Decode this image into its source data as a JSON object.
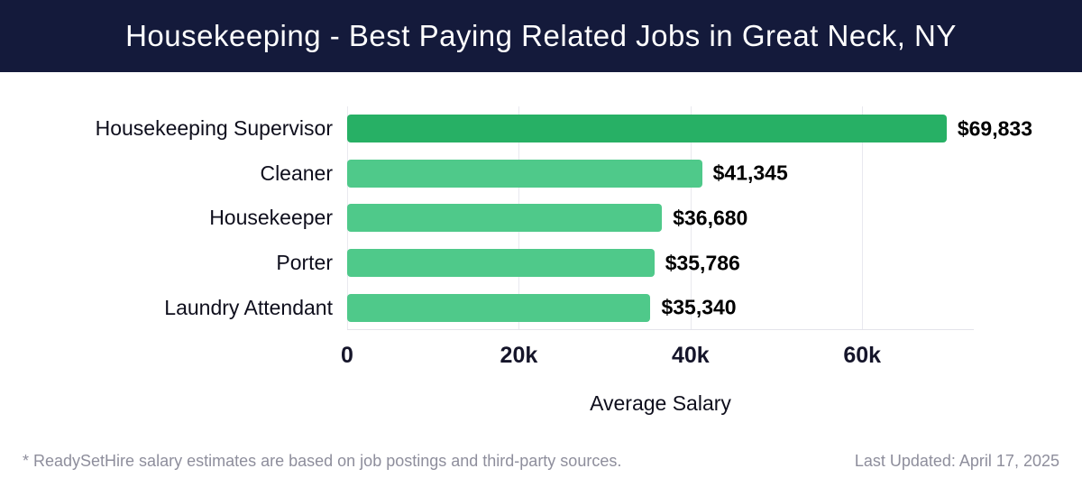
{
  "header": {
    "title": "Housekeeping - Best Paying Related Jobs in Great Neck, NY",
    "background_color": "#141a3b",
    "text_color": "#ffffff"
  },
  "chart_data": {
    "type": "bar",
    "orientation": "horizontal",
    "title": "Housekeeping - Best Paying Related Jobs in Great Neck, NY",
    "categories": [
      "Housekeeping Supervisor",
      "Cleaner",
      "Housekeeper",
      "Porter",
      "Laundry Attendant"
    ],
    "values": [
      69833,
      41345,
      36680,
      35786,
      35340
    ],
    "value_labels": [
      "$69,833",
      "$41,345",
      "$36,680",
      "$35,786",
      "$35,340"
    ],
    "xlabel": "Average Salary",
    "ylabel": "",
    "xlim": [
      0,
      73000
    ],
    "ticks": [
      {
        "value": 0,
        "label": "0"
      },
      {
        "value": 20000,
        "label": "20k"
      },
      {
        "value": 40000,
        "label": "40k"
      },
      {
        "value": 60000,
        "label": "60k"
      }
    ],
    "grid": true,
    "legend": false,
    "bar_colors": [
      "#27b065",
      "#4fc98a",
      "#4fc98a",
      "#4fc98a",
      "#4fc98a"
    ]
  },
  "footer": {
    "note": "* ReadySetHire salary estimates are based on job postings and third-party sources.",
    "last_updated": "Last Updated: April 17, 2025"
  }
}
